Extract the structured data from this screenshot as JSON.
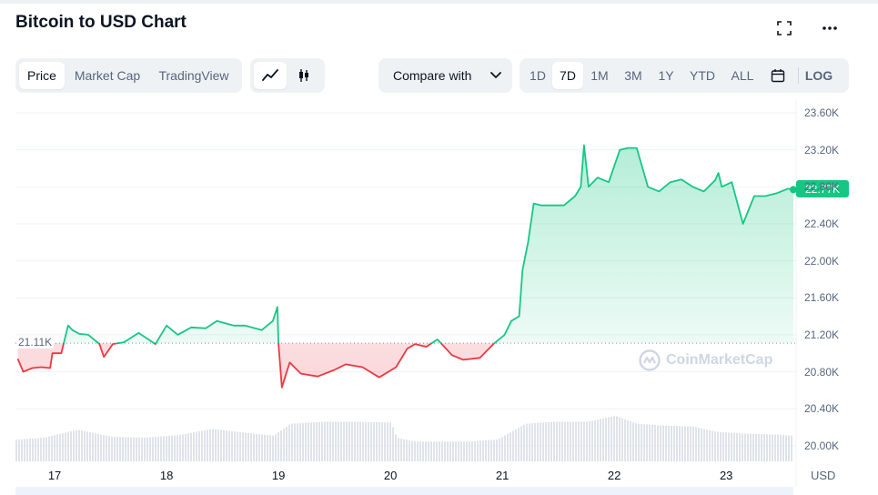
{
  "header": {
    "title": "Bitcoin to USD Chart"
  },
  "chart_tabs": [
    {
      "label": "Price",
      "active": true
    },
    {
      "label": "Market Cap",
      "active": false
    },
    {
      "label": "TradingView",
      "active": false
    }
  ],
  "chart_style_icons": [
    "line-chart-icon",
    "candlestick-icon"
  ],
  "compare": {
    "label": "Compare with"
  },
  "ranges": [
    {
      "label": "1D",
      "active": false
    },
    {
      "label": "7D",
      "active": true
    },
    {
      "label": "1M",
      "active": false
    },
    {
      "label": "3M",
      "active": false
    },
    {
      "label": "1Y",
      "active": false
    },
    {
      "label": "YTD",
      "active": false
    },
    {
      "label": "ALL",
      "active": false
    }
  ],
  "log_label": "LOG",
  "price_tag": "22.77K",
  "reference_tag": "21.11K",
  "currency_label": "USD",
  "watermark": "CoinMarketCap",
  "colors": {
    "up": "#16c784",
    "down": "#ea3943",
    "accent": "#0d1421",
    "muted": "#58667e"
  },
  "chart_data": {
    "type": "area",
    "title": "Bitcoin to USD Chart",
    "x_unit": "day",
    "xlim": [
      16.65,
      23.6
    ],
    "ylim": [
      19.92,
      23.62
    ],
    "y_unit": "K USD",
    "reference_value": 21.11,
    "y_ticks": [
      "23.60K",
      "23.20K",
      "22.80K",
      "22.40K",
      "22.00K",
      "21.60K",
      "21.20K",
      "20.80K",
      "20.40K",
      "20.00K"
    ],
    "x_ticks": [
      "17",
      "18",
      "19",
      "20",
      "21",
      "22",
      "23"
    ],
    "grid": true,
    "price_series": {
      "x": [
        16.67,
        16.72,
        16.8,
        16.88,
        16.96,
        16.98,
        17.06,
        17.12,
        17.16,
        17.22,
        17.3,
        17.4,
        17.44,
        17.52,
        17.62,
        17.75,
        17.9,
        18.0,
        18.1,
        18.22,
        18.35,
        18.45,
        18.6,
        18.7,
        18.85,
        18.95,
        18.99,
        19.0,
        19.03,
        19.1,
        19.2,
        19.35,
        19.5,
        19.6,
        19.75,
        19.9,
        20.05,
        20.15,
        20.22,
        20.32,
        20.42,
        20.55,
        20.65,
        20.8,
        20.92,
        21.02,
        21.08,
        21.15,
        21.18,
        21.23,
        21.28,
        21.35,
        21.45,
        21.55,
        21.65,
        21.7,
        21.73,
        21.77,
        21.85,
        21.95,
        22.05,
        22.12,
        22.2,
        22.3,
        22.4,
        22.5,
        22.6,
        22.7,
        22.8,
        22.9,
        22.93,
        22.96,
        23.05,
        23.15,
        23.25,
        23.35,
        23.45,
        23.55,
        23.6
      ],
      "y": [
        20.94,
        20.8,
        20.84,
        20.85,
        20.84,
        21.0,
        21.0,
        21.3,
        21.25,
        21.21,
        21.2,
        21.1,
        20.96,
        21.1,
        21.12,
        21.22,
        21.1,
        21.3,
        21.2,
        21.28,
        21.27,
        21.35,
        21.3,
        21.3,
        21.25,
        21.35,
        21.5,
        21.1,
        20.63,
        20.9,
        20.78,
        20.75,
        20.82,
        20.88,
        20.85,
        20.74,
        20.85,
        21.05,
        21.1,
        21.07,
        21.15,
        20.98,
        20.93,
        20.95,
        21.1,
        21.2,
        21.35,
        21.4,
        21.9,
        22.2,
        22.62,
        22.6,
        22.6,
        22.6,
        22.7,
        22.8,
        23.25,
        22.8,
        22.9,
        22.85,
        23.2,
        23.22,
        23.22,
        22.8,
        22.75,
        22.85,
        22.88,
        22.8,
        22.75,
        22.87,
        22.95,
        22.8,
        22.85,
        22.4,
        22.7,
        22.7,
        22.73,
        22.78,
        22.77
      ]
    },
    "volume_series": {
      "x": [
        16.67,
        16.9,
        17.2,
        17.5,
        17.8,
        18.1,
        18.4,
        18.7,
        18.95,
        19.1,
        19.4,
        19.7,
        20.0,
        20.05,
        20.2,
        20.4,
        20.7,
        20.95,
        21.2,
        21.45,
        21.75,
        22.0,
        22.2,
        22.45,
        22.7,
        22.9,
        23.15,
        23.4,
        23.6
      ],
      "y": [
        0.55,
        0.6,
        0.8,
        0.62,
        0.6,
        0.66,
        0.82,
        0.72,
        0.65,
        0.95,
        1.0,
        1.0,
        0.98,
        0.6,
        0.5,
        0.5,
        0.5,
        0.55,
        0.95,
        1.0,
        1.0,
        1.15,
        0.95,
        0.9,
        0.88,
        0.75,
        0.7,
        0.68,
        0.65
      ]
    }
  }
}
